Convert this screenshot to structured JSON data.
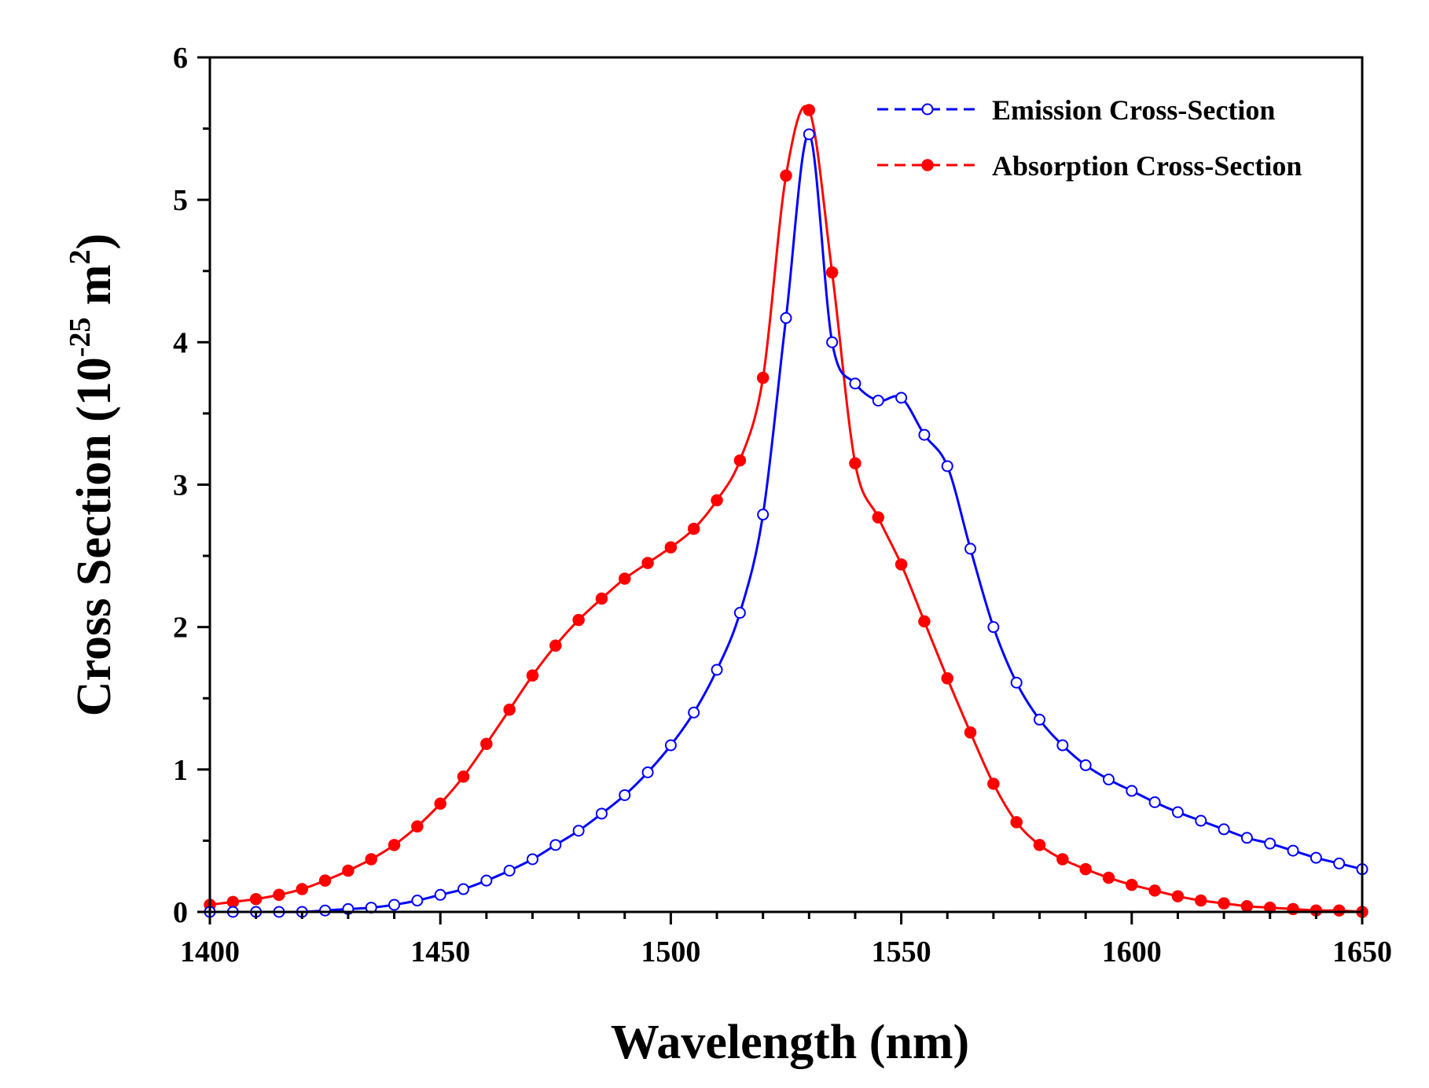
{
  "chart_data": {
    "type": "line",
    "title": "",
    "xlabel": "Wavelength (nm)",
    "ylabel": {
      "prefix": "Cross Section (10",
      "exponent": "-25",
      "middle": " m",
      "unit_exponent": "2",
      "suffix": ")"
    },
    "xlim": [
      1400,
      1650
    ],
    "ylim": [
      0,
      6
    ],
    "x_ticks": [
      "1400",
      "1450",
      "1500",
      "1550",
      "1600",
      "1650"
    ],
    "y_ticks": [
      "0",
      "1",
      "2",
      "3",
      "4",
      "5",
      "6"
    ],
    "legend_position": "top-right",
    "x": [
      1400,
      1405,
      1410,
      1415,
      1420,
      1425,
      1430,
      1435,
      1440,
      1445,
      1450,
      1455,
      1460,
      1465,
      1470,
      1475,
      1480,
      1485,
      1490,
      1495,
      1500,
      1505,
      1510,
      1515,
      1520,
      1525,
      1530,
      1535,
      1540,
      1545,
      1550,
      1555,
      1560,
      1565,
      1570,
      1575,
      1580,
      1585,
      1590,
      1595,
      1600,
      1605,
      1610,
      1615,
      1620,
      1625,
      1630,
      1635,
      1640,
      1645,
      1650
    ],
    "series": [
      {
        "name": "Emission Cross-Section",
        "color": "#0000ff",
        "marker": "open-circle",
        "values": [
          0.0,
          0.0,
          0.0,
          0.0,
          0.0,
          0.01,
          0.02,
          0.03,
          0.05,
          0.08,
          0.12,
          0.16,
          0.22,
          0.29,
          0.37,
          0.47,
          0.57,
          0.69,
          0.82,
          0.98,
          1.17,
          1.4,
          1.7,
          2.1,
          2.79,
          4.17,
          5.46,
          4.0,
          3.71,
          3.59,
          3.61,
          3.35,
          3.13,
          2.55,
          2.0,
          1.61,
          1.35,
          1.17,
          1.03,
          0.93,
          0.85,
          0.77,
          0.7,
          0.64,
          0.58,
          0.52,
          0.48,
          0.43,
          0.38,
          0.34,
          0.3
        ]
      },
      {
        "name": "Absorption Cross-Section",
        "color": "#ff0000",
        "marker": "filled-circle",
        "values": [
          0.05,
          0.07,
          0.09,
          0.12,
          0.16,
          0.22,
          0.29,
          0.37,
          0.47,
          0.6,
          0.76,
          0.95,
          1.18,
          1.42,
          1.66,
          1.87,
          2.05,
          2.2,
          2.34,
          2.45,
          2.56,
          2.69,
          2.89,
          3.17,
          3.75,
          5.17,
          5.63,
          4.49,
          3.15,
          2.77,
          2.44,
          2.04,
          1.64,
          1.26,
          0.9,
          0.63,
          0.47,
          0.37,
          0.3,
          0.24,
          0.19,
          0.15,
          0.11,
          0.08,
          0.06,
          0.04,
          0.03,
          0.02,
          0.01,
          0.01,
          0.0
        ]
      }
    ]
  }
}
